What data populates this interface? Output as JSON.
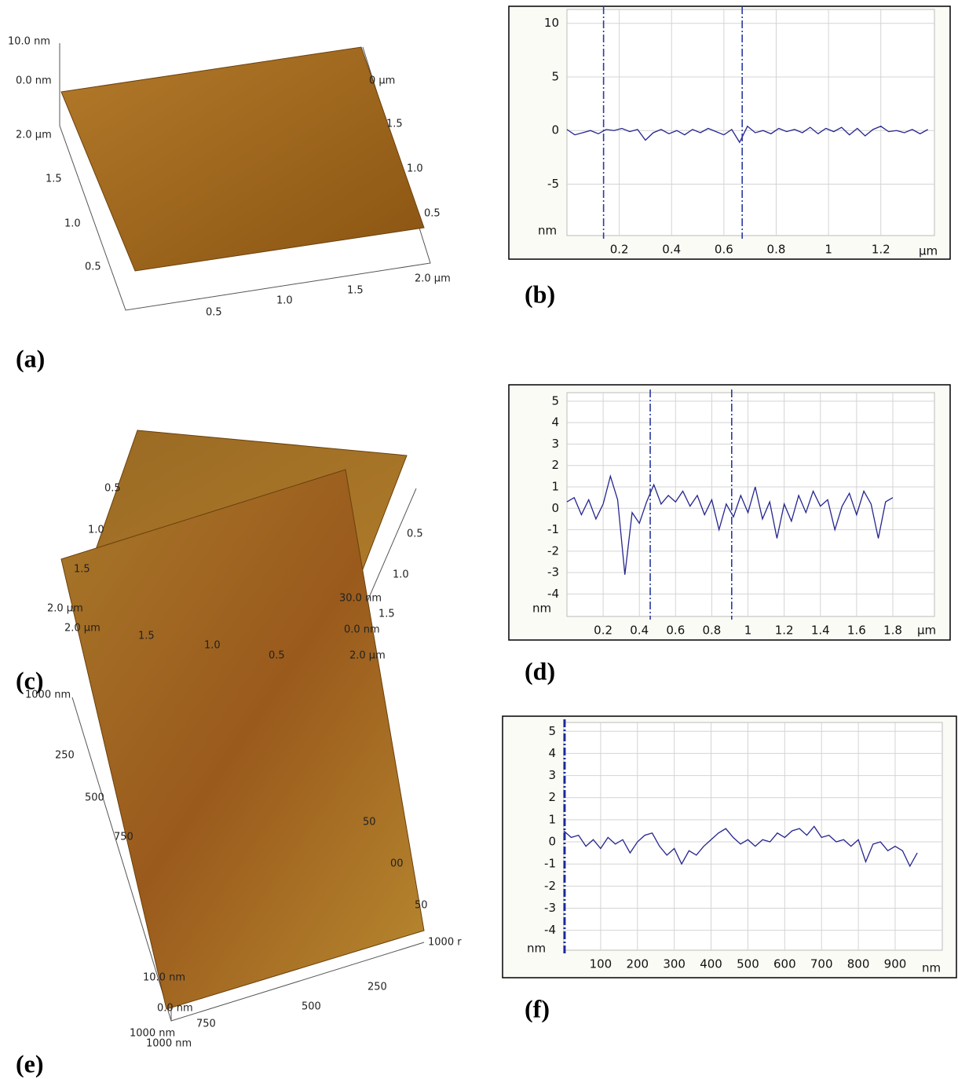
{
  "panel_labels": [
    "(a)",
    "(b)",
    "(c)",
    "(d)",
    "(e)",
    "(f)"
  ],
  "surfaces": [
    {
      "labels": [
        "10.0 nm",
        "0.0 nm",
        "2.0 µm",
        "1.5",
        "1.0",
        "0.5",
        "0.5",
        "1.0",
        "1.5",
        "2.0 µm",
        "0 µm",
        "1.5",
        "1.0",
        "0.5"
      ]
    },
    {
      "labels": [
        "0.5",
        "1.0",
        "1.5",
        "2.0 µm",
        "2.0 µm",
        "1.5",
        "1.0",
        "0.5",
        "0.5",
        "1.0",
        "1.5",
        "2.0 µm",
        "30.0 nm",
        "0.0 nm"
      ]
    },
    {
      "labels": [
        "1000 nm",
        "250",
        "500",
        "750",
        "10.0 nm",
        "0.0 nm",
        "1000 nm",
        "1000 nm",
        "750",
        "500",
        "250",
        "1000 r",
        "50",
        "00",
        "50"
      ]
    }
  ],
  "chart_data": [
    {
      "type": "line",
      "color": "#25258f",
      "grid": true,
      "x_unit": "µm",
      "y_unit": "nm",
      "xlim": [
        0,
        1.405
      ],
      "ylim": [
        -9.8,
        11.3
      ],
      "xticks": [
        0.2,
        0.4,
        0.6,
        0.8,
        1,
        1.2
      ],
      "yticks": [
        10,
        5,
        0,
        -5
      ],
      "cursors": [
        0.14,
        0.67
      ],
      "cursor_color": "#2a3aa0",
      "x": [
        0,
        0.03,
        0.06,
        0.09,
        0.12,
        0.15,
        0.18,
        0.21,
        0.24,
        0.27,
        0.3,
        0.33,
        0.36,
        0.39,
        0.42,
        0.45,
        0.48,
        0.51,
        0.54,
        0.57,
        0.6,
        0.63,
        0.66,
        0.69,
        0.72,
        0.75,
        0.78,
        0.81,
        0.84,
        0.87,
        0.9,
        0.93,
        0.96,
        0.99,
        1.02,
        1.05,
        1.08,
        1.11,
        1.14,
        1.17,
        1.2,
        1.23,
        1.26,
        1.29,
        1.32,
        1.35,
        1.38
      ],
      "values": [
        0.1,
        -0.4,
        -0.2,
        0.0,
        -0.3,
        0.1,
        0.0,
        0.2,
        -0.1,
        0.1,
        -0.9,
        -0.2,
        0.1,
        -0.3,
        0.0,
        -0.4,
        0.1,
        -0.2,
        0.2,
        -0.1,
        -0.4,
        0.1,
        -1.1,
        0.4,
        -0.2,
        0.0,
        -0.3,
        0.2,
        -0.1,
        0.1,
        -0.2,
        0.3,
        -0.3,
        0.2,
        -0.1,
        0.3,
        -0.4,
        0.2,
        -0.5,
        0.1,
        0.4,
        -0.1,
        0.0,
        -0.2,
        0.1,
        -0.3,
        0.1
      ]
    },
    {
      "type": "line",
      "color": "#25258f",
      "grid": true,
      "x_unit": "µm",
      "y_unit": "nm",
      "xlim": [
        0,
        2.03
      ],
      "ylim": [
        -5.05,
        5.4
      ],
      "xticks": [
        0.2,
        0.4,
        0.6,
        0.8,
        1,
        1.2,
        1.4,
        1.6,
        1.8
      ],
      "yticks": [
        5,
        4,
        3,
        2,
        1,
        0,
        -1,
        -2,
        -3,
        -4
      ],
      "cursors": [
        0.46,
        0.91
      ],
      "cursor_color": "#2a3aa0",
      "x": [
        0,
        0.04,
        0.08,
        0.12,
        0.16,
        0.2,
        0.24,
        0.28,
        0.32,
        0.36,
        0.4,
        0.44,
        0.48,
        0.52,
        0.56,
        0.6,
        0.64,
        0.68,
        0.72,
        0.76,
        0.8,
        0.84,
        0.88,
        0.92,
        0.96,
        1.0,
        1.04,
        1.08,
        1.12,
        1.16,
        1.2,
        1.24,
        1.28,
        1.32,
        1.36,
        1.4,
        1.44,
        1.48,
        1.52,
        1.56,
        1.6,
        1.64,
        1.68,
        1.72,
        1.76,
        1.8
      ],
      "values": [
        0.3,
        0.5,
        -0.3,
        0.4,
        -0.5,
        0.2,
        1.5,
        0.4,
        -3.1,
        -0.2,
        -0.7,
        0.3,
        1.1,
        0.2,
        0.6,
        0.3,
        0.8,
        0.1,
        0.6,
        -0.3,
        0.4,
        -1.0,
        0.2,
        -0.4,
        0.6,
        -0.2,
        1.0,
        -0.5,
        0.3,
        -1.4,
        0.2,
        -0.6,
        0.6,
        -0.2,
        0.8,
        0.1,
        0.4,
        -1.0,
        0.1,
        0.7,
        -0.3,
        0.8,
        0.2,
        -1.4,
        0.3,
        0.5
      ]
    },
    {
      "type": "line",
      "color": "#25258f",
      "grid": true,
      "x_unit": "nm",
      "y_unit": "nm",
      "xlim": [
        0,
        1028
      ],
      "ylim": [
        -4.9,
        5.4
      ],
      "xticks": [
        100,
        200,
        300,
        400,
        500,
        600,
        700,
        800,
        900
      ],
      "yticks": [
        5,
        4,
        3,
        2,
        1,
        0,
        -1,
        -2,
        -3,
        -4
      ],
      "cursors": [
        2
      ],
      "cursor_color": "#1a2a9a",
      "x": [
        0,
        20,
        40,
        60,
        80,
        100,
        120,
        140,
        160,
        180,
        200,
        220,
        240,
        260,
        280,
        300,
        320,
        340,
        360,
        380,
        400,
        420,
        440,
        460,
        480,
        500,
        520,
        540,
        560,
        580,
        600,
        620,
        640,
        660,
        680,
        700,
        720,
        740,
        760,
        780,
        800,
        820,
        840,
        860,
        880,
        900,
        920,
        940,
        960
      ],
      "values": [
        0.5,
        0.2,
        0.3,
        -0.2,
        0.1,
        -0.3,
        0.2,
        -0.1,
        0.1,
        -0.5,
        0.0,
        0.3,
        0.4,
        -0.2,
        -0.6,
        -0.3,
        -1.0,
        -0.4,
        -0.6,
        -0.2,
        0.1,
        0.4,
        0.6,
        0.2,
        -0.1,
        0.1,
        -0.2,
        0.1,
        0.0,
        0.4,
        0.2,
        0.5,
        0.6,
        0.3,
        0.7,
        0.2,
        0.3,
        0.0,
        0.1,
        -0.2,
        0.1,
        -0.9,
        -0.1,
        0.0,
        -0.4,
        -0.2,
        -0.4,
        -1.1,
        -0.5
      ]
    }
  ]
}
